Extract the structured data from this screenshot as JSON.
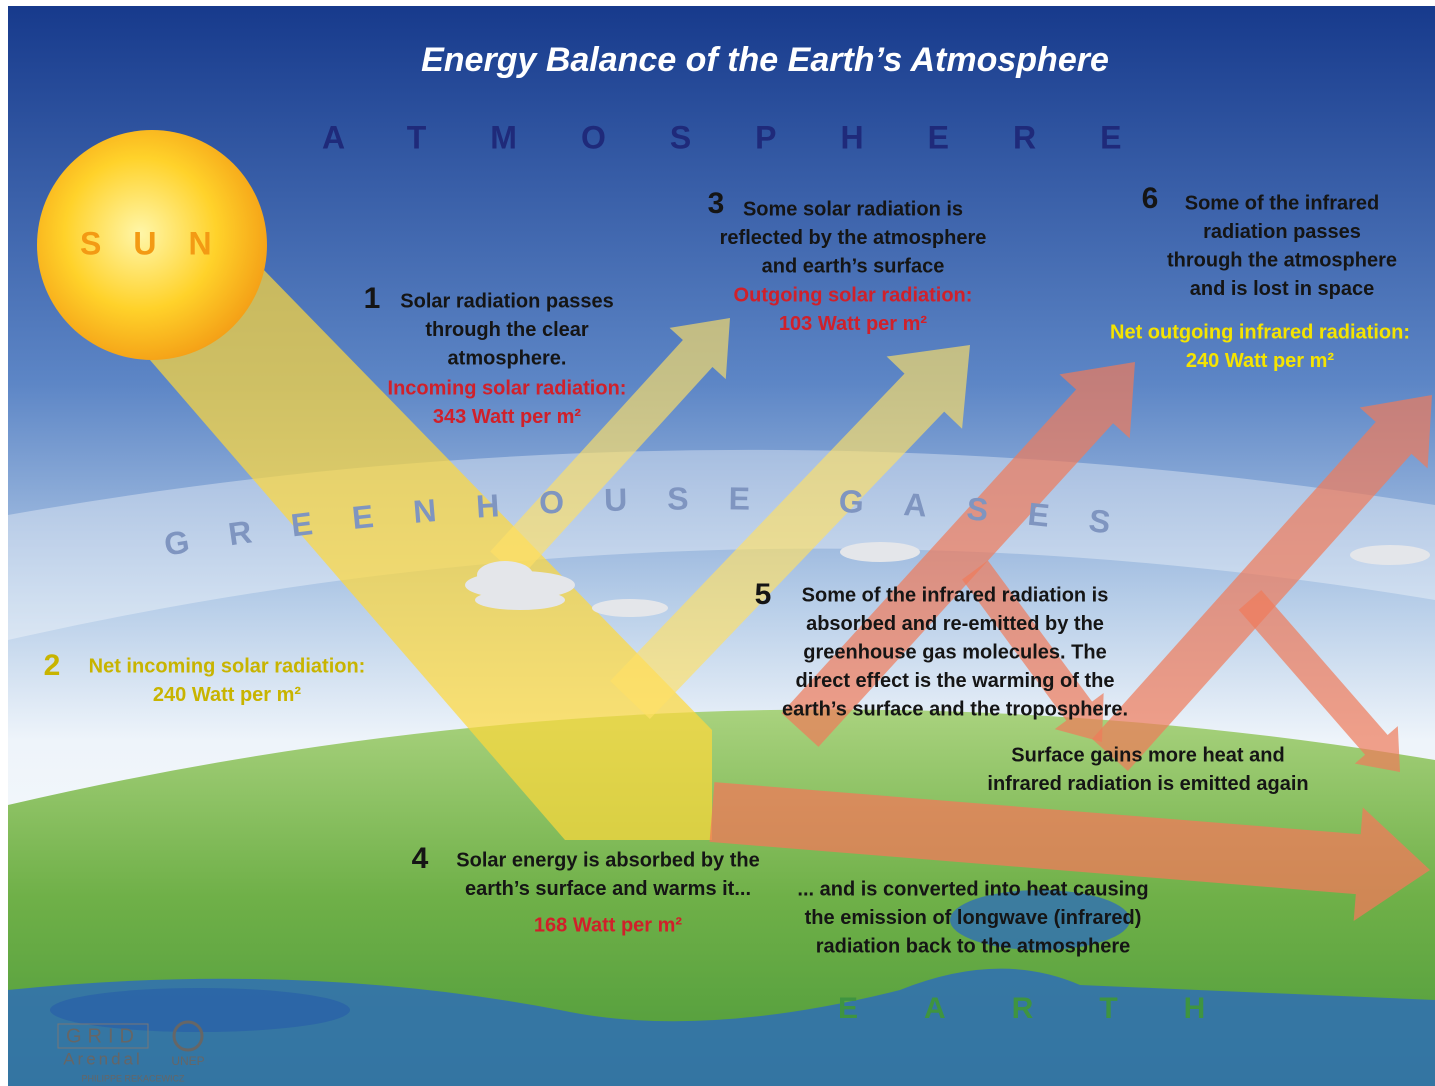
{
  "header": {
    "title": "Energy Balance of the Earth’s Atmosphere"
  },
  "labels": {
    "atmosphere": "ATMOSPHERE",
    "sun": "SUN",
    "greenhouse_gases": "GREENHOUSE GASES",
    "earth": "EARTH"
  },
  "steps": [
    {
      "number": "1",
      "lines": [
        "Solar radiation passes",
        "through the clear",
        "atmosphere."
      ],
      "highlight": [
        "Incoming solar radiation:",
        "343 Watt per m²"
      ]
    },
    {
      "number": "2",
      "lines": [],
      "highlight": [
        "Net incoming solar radiation:",
        "240 Watt per m²"
      ]
    },
    {
      "number": "3",
      "lines": [
        "Some solar radiation is",
        "reflected by the atmosphere",
        "and earth’s surface"
      ],
      "highlight": [
        "Outgoing solar radiation:",
        "103 Watt per m²"
      ]
    },
    {
      "number": "4",
      "lines": [
        "Solar energy is absorbed by the",
        "earth’s surface and warms it..."
      ],
      "highlight": [
        "168 Watt per m²"
      ]
    },
    {
      "number": "5",
      "lines": [
        "Some of the infrared radiation is",
        "absorbed and re-emitted by the",
        "greenhouse gas molecules. The",
        "direct effect is the warming of the",
        "earth’s surface and the troposphere."
      ],
      "highlight": []
    },
    {
      "number": "6",
      "lines": [
        "Some of the infrared",
        "radiation passes",
        "through the atmosphere",
        "and is lost in space"
      ],
      "highlight": [
        "Net outgoing infrared radiation:",
        "240 Watt per m²"
      ]
    }
  ],
  "notes": [
    {
      "lines": [
        "... and is converted into heat causing",
        "the emission of longwave (infrared)",
        "radiation back to the atmosphere"
      ]
    },
    {
      "lines": [
        "Surface gains more heat and",
        "infrared radiation is emitted again"
      ]
    }
  ],
  "credits": {
    "logo": "GRID",
    "place": "Arendal",
    "org": "UNEP",
    "author": "PHILIPPE REKACEWICZ"
  }
}
